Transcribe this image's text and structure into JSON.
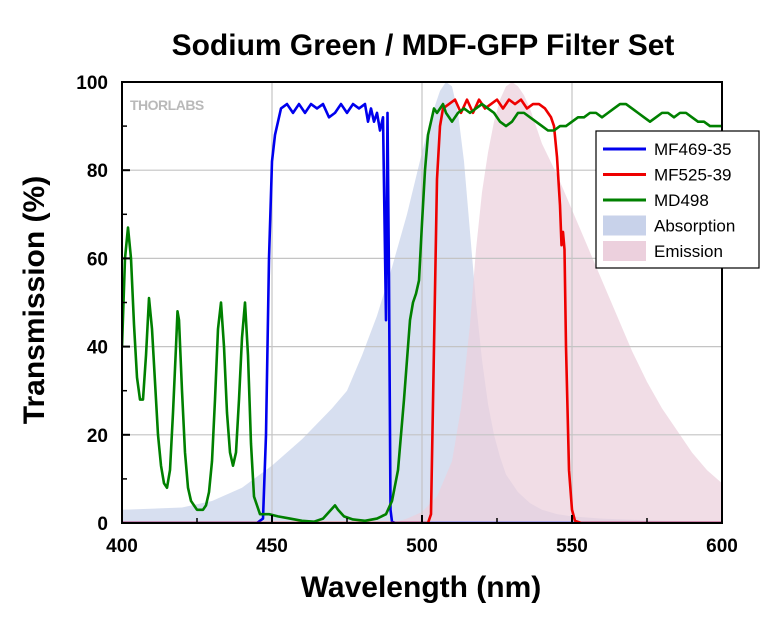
{
  "chart_data": {
    "type": "line",
    "title": "Sodium Green / MDF-GFP Filter Set",
    "xlabel": "Wavelength (nm)",
    "ylabel": "Transmission (%)",
    "xlim": [
      400,
      600
    ],
    "ylim": [
      0,
      100
    ],
    "xticks": [
      400,
      450,
      500,
      550,
      600
    ],
    "yticks": [
      0,
      20,
      40,
      60,
      80,
      100
    ],
    "grid": true,
    "legend_position": "top-right",
    "watermark": "THORLABS",
    "series": [
      {
        "name": "MF469-35",
        "kind": "line",
        "color": "#0000ee",
        "points": [
          [
            400,
            0
          ],
          [
            445,
            0
          ],
          [
            447,
            1
          ],
          [
            448,
            20
          ],
          [
            449,
            60
          ],
          [
            450,
            82
          ],
          [
            451,
            88
          ],
          [
            452,
            91
          ],
          [
            453,
            94
          ],
          [
            455,
            95
          ],
          [
            457,
            93
          ],
          [
            459,
            95
          ],
          [
            461,
            93
          ],
          [
            463,
            95
          ],
          [
            465,
            94
          ],
          [
            467,
            95
          ],
          [
            469,
            92
          ],
          [
            471,
            93
          ],
          [
            473,
            95
          ],
          [
            475,
            93
          ],
          [
            477,
            95
          ],
          [
            479,
            94
          ],
          [
            481,
            95
          ],
          [
            482,
            91
          ],
          [
            483,
            94
          ],
          [
            484,
            91
          ],
          [
            485,
            93
          ],
          [
            486,
            89
          ],
          [
            487,
            92
          ],
          [
            488,
            46
          ],
          [
            488.5,
            93
          ],
          [
            489,
            55
          ],
          [
            489.5,
            3
          ],
          [
            490,
            0.3
          ],
          [
            491,
            0
          ],
          [
            600,
            0
          ]
        ]
      },
      {
        "name": "MF525-39",
        "kind": "line",
        "color": "#ee0000",
        "points": [
          [
            400,
            0
          ],
          [
            502,
            0
          ],
          [
            503,
            2
          ],
          [
            504,
            40
          ],
          [
            505,
            78
          ],
          [
            506,
            90
          ],
          [
            507,
            94
          ],
          [
            509,
            95
          ],
          [
            511,
            96
          ],
          [
            513,
            93
          ],
          [
            515,
            96
          ],
          [
            517,
            93
          ],
          [
            519,
            96
          ],
          [
            521,
            94
          ],
          [
            523,
            95
          ],
          [
            525,
            96
          ],
          [
            527,
            94
          ],
          [
            529,
            96
          ],
          [
            531,
            95
          ],
          [
            533,
            96
          ],
          [
            535,
            94
          ],
          [
            537,
            95
          ],
          [
            539,
            95
          ],
          [
            541,
            94
          ],
          [
            543,
            92
          ],
          [
            544,
            90
          ],
          [
            545,
            83
          ],
          [
            546,
            72
          ],
          [
            546.5,
            63
          ],
          [
            547,
            66
          ],
          [
            547.5,
            62
          ],
          [
            548,
            40
          ],
          [
            549,
            12
          ],
          [
            550,
            3
          ],
          [
            551,
            0.5
          ],
          [
            553,
            0
          ],
          [
            600,
            0
          ]
        ]
      },
      {
        "name": "MD498",
        "kind": "line",
        "color": "#008000",
        "points": [
          [
            400,
            40
          ],
          [
            401,
            60
          ],
          [
            402,
            67
          ],
          [
            403,
            60
          ],
          [
            404,
            45
          ],
          [
            405,
            33
          ],
          [
            406,
            28
          ],
          [
            407,
            28
          ],
          [
            408,
            38
          ],
          [
            409,
            51
          ],
          [
            410,
            44
          ],
          [
            411,
            32
          ],
          [
            412,
            20
          ],
          [
            413,
            13
          ],
          [
            414,
            9
          ],
          [
            415,
            8
          ],
          [
            416,
            12
          ],
          [
            417,
            25
          ],
          [
            418,
            40
          ],
          [
            418.5,
            48
          ],
          [
            419,
            46
          ],
          [
            420,
            30
          ],
          [
            421,
            16
          ],
          [
            422,
            8
          ],
          [
            423,
            5
          ],
          [
            424,
            4
          ],
          [
            425,
            3
          ],
          [
            426,
            3
          ],
          [
            427,
            3
          ],
          [
            428,
            4
          ],
          [
            429,
            7
          ],
          [
            430,
            14
          ],
          [
            431,
            28
          ],
          [
            432,
            44
          ],
          [
            433,
            50
          ],
          [
            434,
            40
          ],
          [
            435,
            25
          ],
          [
            436,
            16
          ],
          [
            437,
            13
          ],
          [
            438,
            16
          ],
          [
            439,
            28
          ],
          [
            440,
            42
          ],
          [
            441,
            50
          ],
          [
            442,
            38
          ],
          [
            443,
            18
          ],
          [
            444,
            6
          ],
          [
            446,
            2
          ],
          [
            449,
            2
          ],
          [
            452,
            1.5
          ],
          [
            456,
            1
          ],
          [
            460,
            0.5
          ],
          [
            464,
            0.3
          ],
          [
            467,
            1
          ],
          [
            469,
            2.5
          ],
          [
            471,
            4
          ],
          [
            472,
            3
          ],
          [
            474,
            1.5
          ],
          [
            477,
            0.8
          ],
          [
            481,
            0.5
          ],
          [
            485,
            1
          ],
          [
            488,
            2
          ],
          [
            490,
            5
          ],
          [
            492,
            12
          ],
          [
            494,
            28
          ],
          [
            496,
            46
          ],
          [
            497,
            50
          ],
          [
            498,
            52
          ],
          [
            499,
            55
          ],
          [
            500,
            68
          ],
          [
            501,
            80
          ],
          [
            502,
            88
          ],
          [
            503,
            91
          ],
          [
            504,
            94
          ],
          [
            505,
            93
          ],
          [
            506,
            94
          ],
          [
            507,
            95
          ],
          [
            508,
            93
          ],
          [
            509,
            92
          ],
          [
            510,
            91
          ],
          [
            512,
            93
          ],
          [
            514,
            94
          ],
          [
            516,
            93
          ],
          [
            518,
            94
          ],
          [
            520,
            95
          ],
          [
            522,
            94
          ],
          [
            524,
            93
          ],
          [
            526,
            91
          ],
          [
            528,
            90
          ],
          [
            530,
            91
          ],
          [
            532,
            93
          ],
          [
            534,
            93
          ],
          [
            536,
            92
          ],
          [
            538,
            91
          ],
          [
            540,
            90
          ],
          [
            542,
            89
          ],
          [
            544,
            89
          ],
          [
            546,
            90
          ],
          [
            548,
            90
          ],
          [
            550,
            91
          ],
          [
            552,
            92
          ],
          [
            554,
            92
          ],
          [
            556,
            93
          ],
          [
            558,
            93
          ],
          [
            560,
            92
          ],
          [
            562,
            93
          ],
          [
            564,
            94
          ],
          [
            566,
            95
          ],
          [
            568,
            95
          ],
          [
            570,
            94
          ],
          [
            572,
            93
          ],
          [
            574,
            92
          ],
          [
            576,
            91
          ],
          [
            578,
            92
          ],
          [
            580,
            93
          ],
          [
            582,
            93
          ],
          [
            584,
            92
          ],
          [
            586,
            93
          ],
          [
            588,
            93
          ],
          [
            590,
            92
          ],
          [
            592,
            91
          ],
          [
            594,
            91
          ],
          [
            596,
            90
          ],
          [
            600,
            90
          ]
        ]
      },
      {
        "name": "Absorption",
        "kind": "area",
        "color": "#c8d2ea",
        "points": [
          [
            400,
            3
          ],
          [
            420,
            3.5
          ],
          [
            430,
            5
          ],
          [
            440,
            8
          ],
          [
            450,
            13
          ],
          [
            460,
            19
          ],
          [
            470,
            26
          ],
          [
            475,
            30
          ],
          [
            480,
            38
          ],
          [
            485,
            47
          ],
          [
            490,
            58
          ],
          [
            495,
            70
          ],
          [
            500,
            84
          ],
          [
            503,
            92
          ],
          [
            506,
            98
          ],
          [
            508,
            100
          ],
          [
            510,
            99
          ],
          [
            512,
            93
          ],
          [
            514,
            82
          ],
          [
            516,
            66
          ],
          [
            518,
            50
          ],
          [
            520,
            37
          ],
          [
            522,
            27
          ],
          [
            524,
            20
          ],
          [
            526,
            15
          ],
          [
            528,
            11
          ],
          [
            532,
            7
          ],
          [
            536,
            4.5
          ],
          [
            540,
            3
          ],
          [
            545,
            2
          ],
          [
            550,
            1.5
          ],
          [
            560,
            1
          ],
          [
            580,
            0.5
          ],
          [
            600,
            0.3
          ]
        ]
      },
      {
        "name": "Emission",
        "kind": "area",
        "color": "#ecd0dd",
        "points": [
          [
            400,
            0
          ],
          [
            490,
            0
          ],
          [
            495,
            1
          ],
          [
            500,
            2.5
          ],
          [
            505,
            6
          ],
          [
            510,
            14
          ],
          [
            513,
            26
          ],
          [
            516,
            45
          ],
          [
            518,
            62
          ],
          [
            520,
            75
          ],
          [
            522,
            84
          ],
          [
            524,
            91
          ],
          [
            526,
            96
          ],
          [
            528,
            99
          ],
          [
            530,
            100
          ],
          [
            532,
            99
          ],
          [
            534,
            97
          ],
          [
            536,
            94
          ],
          [
            538,
            90
          ],
          [
            540,
            86
          ],
          [
            545,
            79
          ],
          [
            550,
            71
          ],
          [
            555,
            63
          ],
          [
            560,
            55
          ],
          [
            565,
            47
          ],
          [
            570,
            39
          ],
          [
            575,
            32
          ],
          [
            580,
            26
          ],
          [
            585,
            21
          ],
          [
            590,
            16
          ],
          [
            595,
            12
          ],
          [
            600,
            9
          ]
        ]
      }
    ]
  }
}
